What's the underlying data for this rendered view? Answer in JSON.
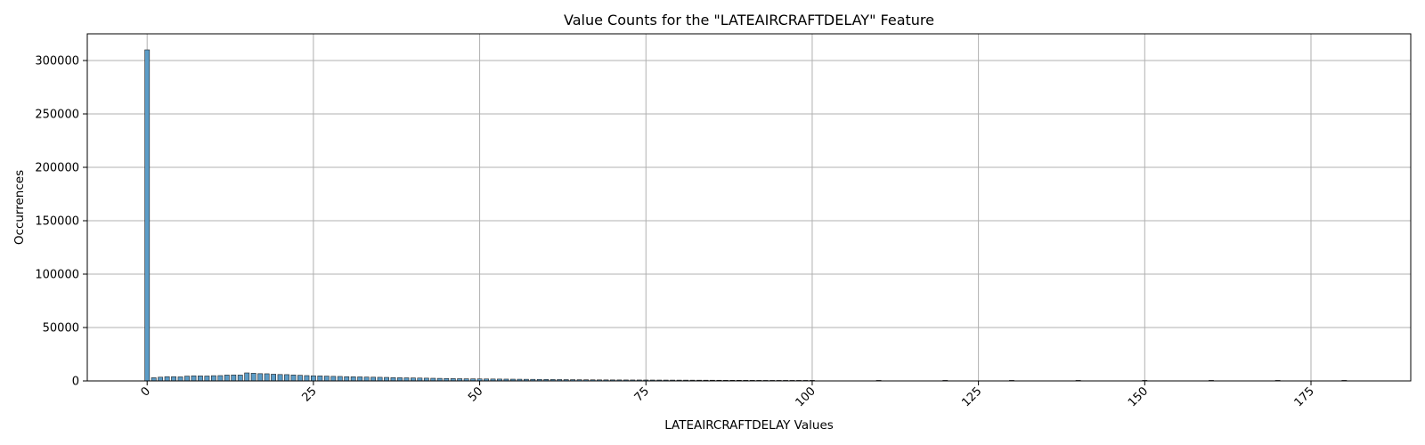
{
  "chart_data": {
    "type": "bar",
    "title": "Value Counts for the \"LATEAIRCRAFTDELAY\" Feature",
    "xlabel": "LATEAIRCRAFTDELAY Values",
    "ylabel": "Occurrences",
    "xlim": [
      -9,
      190
    ],
    "ylim": [
      0,
      325000
    ],
    "x_ticks": [
      0,
      25,
      50,
      75,
      100,
      125,
      150,
      175
    ],
    "x_tick_labels": [
      "0",
      "25",
      "50",
      "75",
      "100",
      "125",
      "150",
      "175"
    ],
    "x_tick_rotation": -45,
    "y_ticks": [
      0,
      50000,
      100000,
      150000,
      200000,
      250000,
      300000
    ],
    "y_tick_labels": [
      "0",
      "50000",
      "100000",
      "150000",
      "200000",
      "250000",
      "300000"
    ],
    "grid": true,
    "bar_color": "#5b9cc7",
    "bar_edge_color": "#222222",
    "x": [
      0,
      1,
      2,
      3,
      4,
      5,
      6,
      7,
      8,
      9,
      10,
      11,
      12,
      13,
      14,
      15,
      16,
      17,
      18,
      19,
      20,
      21,
      22,
      23,
      24,
      25,
      26,
      27,
      28,
      29,
      30,
      31,
      32,
      33,
      34,
      35,
      36,
      37,
      38,
      39,
      40,
      41,
      42,
      43,
      44,
      45,
      46,
      47,
      48,
      49,
      50,
      51,
      52,
      53,
      54,
      55,
      56,
      57,
      58,
      59,
      60,
      61,
      62,
      63,
      64,
      65,
      66,
      67,
      68,
      69,
      70,
      71,
      72,
      73,
      74,
      75,
      76,
      77,
      78,
      79,
      80,
      81,
      82,
      83,
      84,
      85,
      86,
      87,
      88,
      89,
      90,
      91,
      92,
      93,
      94,
      95,
      96,
      97,
      98,
      99,
      100,
      110,
      120,
      130,
      140,
      150,
      160,
      170,
      180
    ],
    "values": [
      310000,
      3000,
      3500,
      4000,
      4000,
      3800,
      4500,
      4800,
      4700,
      4600,
      4900,
      5000,
      5500,
      5600,
      5500,
      7500,
      7200,
      6800,
      6700,
      6300,
      6000,
      5900,
      5600,
      5300,
      5000,
      4800,
      4700,
      4500,
      4300,
      4200,
      4000,
      3900,
      3800,
      3600,
      3500,
      3400,
      3300,
      3100,
      3000,
      2900,
      2800,
      2700,
      2600,
      2500,
      2400,
      2300,
      2200,
      2100,
      2000,
      1950,
      1900,
      1850,
      1800,
      1750,
      1700,
      1650,
      1600,
      1550,
      1500,
      1450,
      1400,
      1350,
      1300,
      1250,
      1200,
      1150,
      1100,
      1050,
      1000,
      980,
      960,
      940,
      920,
      900,
      880,
      860,
      840,
      820,
      800,
      780,
      760,
      740,
      720,
      700,
      680,
      660,
      640,
      620,
      600,
      580,
      560,
      540,
      520,
      500,
      480,
      460,
      440,
      420,
      150,
      120,
      100,
      60,
      40,
      30,
      20,
      15,
      10,
      8,
      5
    ]
  }
}
